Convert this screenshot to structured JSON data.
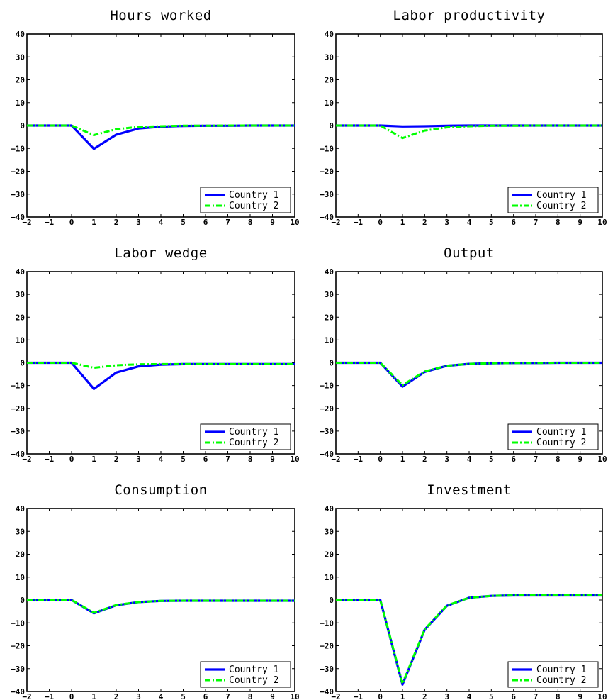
{
  "chart_data": [
    {
      "type": "line",
      "title": "Hours worked",
      "xlabel": "",
      "ylabel": "",
      "xlim": [
        -2,
        10
      ],
      "ylim": [
        -40,
        40
      ],
      "x": [
        -2,
        -1,
        0,
        1,
        2,
        3,
        4,
        5,
        6,
        7,
        8,
        9,
        10
      ],
      "xticks": [
        "−2",
        "−1",
        "0",
        "1",
        "2",
        "3",
        "4",
        "5",
        "6",
        "7",
        "8",
        "9",
        "10"
      ],
      "yticks": [
        "−40",
        "−30",
        "−20",
        "−10",
        "0",
        "10",
        "20",
        "30",
        "40"
      ],
      "legend_position": "bottom-right",
      "series": [
        {
          "name": "Country 1",
          "color": "#0000ff",
          "style": "solid",
          "values": [
            0,
            0,
            0,
            -10.2,
            -4.0,
            -1.3,
            -0.5,
            -0.2,
            -0.1,
            -0.1,
            0,
            0,
            0
          ]
        },
        {
          "name": "Country 2",
          "color": "#00ff00",
          "style": "dashdot",
          "values": [
            0,
            0,
            0,
            -4.2,
            -1.6,
            -0.6,
            -0.3,
            -0.1,
            -0.1,
            0,
            0,
            0,
            0
          ]
        }
      ]
    },
    {
      "type": "line",
      "title": "Labor productivity",
      "xlabel": "",
      "ylabel": "",
      "xlim": [
        -2,
        10
      ],
      "ylim": [
        -40,
        40
      ],
      "x": [
        -2,
        -1,
        0,
        1,
        2,
        3,
        4,
        5,
        6,
        7,
        8,
        9,
        10
      ],
      "xticks": [
        "−2",
        "−1",
        "0",
        "1",
        "2",
        "3",
        "4",
        "5",
        "6",
        "7",
        "8",
        "9",
        "10"
      ],
      "yticks": [
        "−40",
        "−30",
        "−20",
        "−10",
        "0",
        "10",
        "20",
        "30",
        "40"
      ],
      "legend_position": "bottom-right",
      "series": [
        {
          "name": "Country 1",
          "color": "#0000ff",
          "style": "solid",
          "values": [
            0,
            0,
            0,
            -0.4,
            -0.3,
            -0.1,
            0,
            0,
            0,
            0,
            0,
            0,
            0
          ]
        },
        {
          "name": "Country 2",
          "color": "#00ff00",
          "style": "dashdot",
          "values": [
            0,
            0,
            0,
            -5.5,
            -2.2,
            -0.8,
            -0.3,
            -0.1,
            -0.1,
            0,
            0,
            0,
            0
          ]
        }
      ]
    },
    {
      "type": "line",
      "title": "Labor wedge",
      "xlabel": "",
      "ylabel": "",
      "xlim": [
        -2,
        10
      ],
      "ylim": [
        -40,
        40
      ],
      "x": [
        -2,
        -1,
        0,
        1,
        2,
        3,
        4,
        5,
        6,
        7,
        8,
        9,
        10
      ],
      "xticks": [
        "−2",
        "−1",
        "0",
        "1",
        "2",
        "3",
        "4",
        "5",
        "6",
        "7",
        "8",
        "9",
        "10"
      ],
      "yticks": [
        "−40",
        "−30",
        "−20",
        "−10",
        "0",
        "10",
        "20",
        "30",
        "40"
      ],
      "legend_position": "bottom-right",
      "series": [
        {
          "name": "Country 1",
          "color": "#0000ff",
          "style": "solid",
          "values": [
            0,
            0,
            0,
            -11.5,
            -4.3,
            -1.6,
            -0.8,
            -0.6,
            -0.6,
            -0.6,
            -0.6,
            -0.6,
            -0.6
          ]
        },
        {
          "name": "Country 2",
          "color": "#00ff00",
          "style": "dashdot",
          "values": [
            0,
            0,
            0,
            -2.2,
            -1.1,
            -0.7,
            -0.6,
            -0.6,
            -0.6,
            -0.6,
            -0.6,
            -0.6,
            -0.6
          ]
        }
      ]
    },
    {
      "type": "line",
      "title": "Output",
      "xlabel": "",
      "ylabel": "",
      "xlim": [
        -2,
        10
      ],
      "ylim": [
        -40,
        40
      ],
      "x": [
        -2,
        -1,
        0,
        1,
        2,
        3,
        4,
        5,
        6,
        7,
        8,
        9,
        10
      ],
      "xticks": [
        "−2",
        "−1",
        "0",
        "1",
        "2",
        "3",
        "4",
        "5",
        "6",
        "7",
        "8",
        "9",
        "10"
      ],
      "yticks": [
        "−40",
        "−30",
        "−20",
        "−10",
        "0",
        "10",
        "20",
        "30",
        "40"
      ],
      "legend_position": "bottom-right",
      "series": [
        {
          "name": "Country 1",
          "color": "#0000ff",
          "style": "solid",
          "values": [
            0,
            0,
            0,
            -10.5,
            -4.0,
            -1.3,
            -0.5,
            -0.2,
            -0.1,
            -0.1,
            0,
            0,
            0
          ]
        },
        {
          "name": "Country 2",
          "color": "#00ff00",
          "style": "dashdot",
          "values": [
            0,
            0,
            0,
            -9.8,
            -3.8,
            -1.3,
            -0.5,
            -0.2,
            -0.1,
            -0.1,
            0,
            0,
            0
          ]
        }
      ]
    },
    {
      "type": "line",
      "title": "Consumption",
      "xlabel": "",
      "ylabel": "",
      "xlim": [
        -2,
        10
      ],
      "ylim": [
        -40,
        40
      ],
      "x": [
        -2,
        -1,
        0,
        1,
        2,
        3,
        4,
        5,
        6,
        7,
        8,
        9,
        10
      ],
      "xticks": [
        "−2",
        "−1",
        "0",
        "1",
        "2",
        "3",
        "4",
        "5",
        "6",
        "7",
        "8",
        "9",
        "10"
      ],
      "yticks": [
        "−40",
        "−30",
        "−20",
        "−10",
        "0",
        "10",
        "20",
        "30",
        "40"
      ],
      "legend_position": "bottom-right",
      "series": [
        {
          "name": "Country 1",
          "color": "#0000ff",
          "style": "solid",
          "values": [
            0,
            0,
            0,
            -5.8,
            -2.3,
            -0.9,
            -0.4,
            -0.3,
            -0.3,
            -0.3,
            -0.3,
            -0.3,
            -0.3
          ]
        },
        {
          "name": "Country 2",
          "color": "#00ff00",
          "style": "dashdot",
          "values": [
            0,
            0,
            0,
            -5.6,
            -2.2,
            -0.9,
            -0.4,
            -0.3,
            -0.3,
            -0.3,
            -0.3,
            -0.3,
            -0.3
          ]
        }
      ]
    },
    {
      "type": "line",
      "title": "Investment",
      "xlabel": "",
      "ylabel": "",
      "xlim": [
        -2,
        10
      ],
      "ylim": [
        -40,
        40
      ],
      "x": [
        -2,
        -1,
        0,
        1,
        2,
        3,
        4,
        5,
        6,
        7,
        8,
        9,
        10
      ],
      "xticks": [
        "−2",
        "−1",
        "0",
        "1",
        "2",
        "3",
        "4",
        "5",
        "6",
        "7",
        "8",
        "9",
        "10"
      ],
      "yticks": [
        "−40",
        "−30",
        "−20",
        "−10",
        "0",
        "10",
        "20",
        "30",
        "40"
      ],
      "legend_position": "bottom-right",
      "series": [
        {
          "name": "Country 1",
          "color": "#0000ff",
          "style": "solid",
          "values": [
            0,
            0,
            0,
            -37.0,
            -13.0,
            -2.5,
            1.0,
            1.8,
            2.0,
            2.0,
            2.0,
            2.0,
            2.0
          ]
        },
        {
          "name": "Country 2",
          "color": "#00ff00",
          "style": "dashdot",
          "values": [
            0,
            0,
            0,
            -36.5,
            -12.8,
            -2.4,
            1.0,
            1.8,
            2.0,
            2.0,
            2.0,
            2.0,
            2.0
          ]
        }
      ]
    }
  ]
}
